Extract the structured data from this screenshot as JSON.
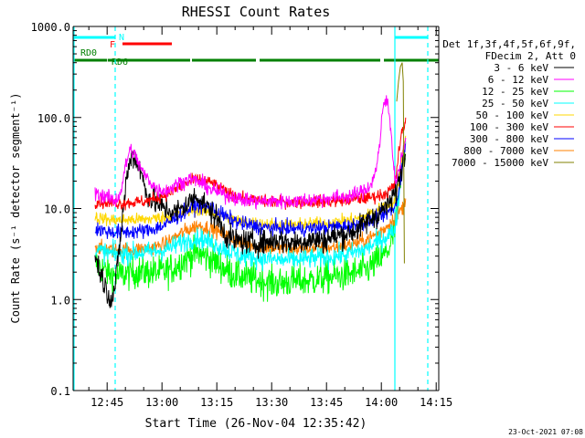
{
  "chart_data": {
    "type": "line",
    "title": "RHESSI Count Rates",
    "xlabel": "Start Time (26-Nov-04 12:35:42)",
    "ylabel": "Count Rate (s⁻¹ detector segment⁻¹)",
    "x_unit": "minutes after 12:35:42 UT",
    "xlim": [
      0,
      100
    ],
    "ylim": [
      0.1,
      1000
    ],
    "y_scale": "log",
    "x_ticks": [
      "12:45",
      "13:00",
      "13:15",
      "13:30",
      "13:45",
      "14:00",
      "14:15"
    ],
    "y_ticks": [
      "0.1",
      "1.0",
      "10.0",
      "100.0",
      "1000.0"
    ],
    "timestamp": "23-Oct-2021 07:08",
    "legend_position": "right",
    "legend_header": [
      "Det 1f,3f,4f,5f,6f,9f,",
      "FDecim 2, Att 0"
    ],
    "grid": false,
    "annotations": {
      "night": "N",
      "flare": "F",
      "decimation": [
        "RD0",
        "RD6"
      ]
    },
    "night_periods": [
      [
        0,
        11.5
      ],
      [
        88,
        97
      ]
    ],
    "flare_flag": [
      [
        13.5,
        27
      ]
    ],
    "decimation_segments": [
      [
        0,
        9.3
      ],
      [
        9.5,
        32
      ],
      [
        32.5,
        50
      ],
      [
        51,
        84
      ],
      [
        85,
        100
      ]
    ],
    "boundaries": [
      {
        "x": 11.5,
        "color": "#00ffff",
        "style": "dashed"
      },
      {
        "x": 88.0,
        "color": "#00ffff",
        "style": "solid"
      },
      {
        "x": 97.0,
        "color": "#00ffff",
        "style": "dashed"
      }
    ],
    "series": [
      {
        "name": "3 - 6 keV",
        "color": "#000000",
        "noise": 0.1,
        "x": [
          6,
          7.5,
          9,
          10.5,
          11.5,
          13,
          14.5,
          16,
          18,
          20,
          22,
          25,
          28,
          31,
          34,
          36,
          38,
          40,
          42,
          44,
          47,
          50,
          53,
          56,
          60,
          64,
          68,
          72,
          76,
          78,
          80,
          82,
          84,
          85,
          86,
          87,
          88,
          89,
          90,
          91
        ],
        "values": [
          3,
          2,
          1.3,
          1.0,
          1.4,
          5,
          20,
          40,
          30,
          15,
          12,
          10,
          9,
          11,
          14,
          11,
          9,
          7,
          5,
          4.5,
          4.3,
          4.2,
          4.3,
          4.5,
          4.2,
          4.5,
          4.5,
          5,
          5.5,
          6,
          7,
          8,
          9,
          10,
          11,
          12,
          15,
          20,
          30,
          42
        ]
      },
      {
        "name": "6 - 12 keV",
        "color": "#ff00ff",
        "noise": 0.06,
        "x": [
          6,
          8,
          10,
          11.5,
          13,
          14,
          15.5,
          17,
          19,
          21,
          23,
          26,
          28,
          30,
          32,
          34,
          36,
          38,
          40,
          42,
          44,
          46,
          50,
          55,
          60,
          65,
          70,
          74,
          77,
          80,
          82,
          83,
          84,
          84.5,
          85,
          86,
          87,
          88,
          89,
          90,
          91
        ],
        "values": [
          15,
          14,
          13,
          12,
          15,
          25,
          45,
          38,
          25,
          20,
          16,
          16,
          18,
          20,
          21,
          20,
          18,
          16,
          15,
          14,
          13.5,
          12.5,
          12,
          12,
          12,
          12.5,
          13,
          13.5,
          14,
          16,
          20,
          30,
          55,
          100,
          145,
          150,
          70,
          20,
          25,
          40,
          60
        ]
      },
      {
        "name": "12 - 25 keV",
        "color": "#00ff00",
        "noise": 0.13,
        "x": [
          6,
          8,
          10,
          12,
          14,
          17,
          20,
          25,
          28,
          30,
          32,
          34,
          36,
          38,
          40,
          42,
          44,
          48,
          52,
          56,
          60,
          64,
          68,
          72,
          76,
          80,
          82,
          84,
          85,
          86,
          87,
          88,
          89,
          90,
          91
        ],
        "values": [
          2.5,
          2.2,
          1.9,
          1.8,
          1.9,
          2.0,
          2.0,
          2.0,
          2.3,
          2.7,
          3.0,
          3.2,
          3.0,
          2.7,
          2.4,
          2.1,
          1.9,
          1.7,
          1.6,
          1.5,
          1.6,
          1.6,
          1.7,
          1.8,
          1.9,
          2.1,
          2.4,
          2.8,
          3,
          3.5,
          4,
          6,
          12,
          30,
          50
        ]
      },
      {
        "name": "25 - 50 keV",
        "color": "#00ffff",
        "noise": 0.08,
        "x": [
          6,
          10,
          14,
          20,
          25,
          30,
          34,
          38,
          42,
          46,
          52,
          58,
          64,
          70,
          76,
          80,
          84,
          86,
          88,
          89,
          90,
          91
        ],
        "values": [
          3.5,
          3.2,
          3.2,
          3.3,
          3.5,
          4.3,
          4.8,
          4.2,
          3.5,
          3.0,
          2.8,
          2.7,
          2.8,
          2.9,
          3.2,
          3.6,
          4.5,
          5,
          6,
          12,
          35,
          60
        ]
      },
      {
        "name": "50 - 100 keV",
        "color": "#ffd700",
        "noise": 0.05,
        "x": [
          6,
          10,
          14,
          20,
          25,
          30,
          34,
          38,
          42,
          46,
          52,
          58,
          64,
          70,
          76,
          80,
          84,
          86,
          88,
          89,
          90,
          91
        ],
        "values": [
          8,
          7.5,
          7.5,
          7.6,
          8,
          9,
          9.8,
          9,
          8,
          7.2,
          6.8,
          6.6,
          6.8,
          7,
          7.5,
          8.2,
          10,
          11,
          12,
          20,
          40,
          60
        ]
      },
      {
        "name": "100 - 300 keV",
        "color": "#ff0000",
        "noise": 0.05,
        "x": [
          6,
          10,
          14,
          20,
          25,
          30,
          34,
          38,
          42,
          46,
          52,
          58,
          64,
          70,
          76,
          80,
          84,
          86,
          88,
          89,
          90,
          91
        ],
        "values": [
          12,
          11.5,
          11.5,
          12,
          14,
          18,
          21,
          19,
          15,
          13,
          12,
          11.8,
          11.8,
          12,
          12.5,
          13,
          14,
          15,
          18,
          40,
          70,
          90
        ]
      },
      {
        "name": "300 - 800 keV",
        "color": "#0000ff",
        "noise": 0.06,
        "x": [
          6,
          10,
          14,
          20,
          25,
          30,
          34,
          38,
          42,
          46,
          52,
          58,
          64,
          70,
          76,
          80,
          84,
          86,
          88,
          89,
          90,
          91
        ],
        "values": [
          6,
          5.5,
          5.5,
          5.7,
          6.5,
          9,
          11,
          10,
          8,
          6.8,
          6.2,
          6.0,
          6.0,
          6.2,
          6.5,
          7,
          8,
          9,
          10,
          15,
          30,
          55
        ]
      },
      {
        "name": "800 - 7000 keV",
        "color": "#ff8000",
        "noise": 0.06,
        "x": [
          6,
          10,
          14,
          20,
          25,
          30,
          34,
          38,
          42,
          46,
          52,
          58,
          64,
          70,
          76,
          80,
          84,
          86,
          88,
          89,
          90,
          90.5,
          91
        ],
        "values": [
          3.8,
          3.5,
          3.5,
          3.6,
          4,
          5.5,
          6.5,
          6,
          5,
          4.2,
          3.8,
          3.6,
          3.6,
          3.7,
          4,
          4.5,
          5.5,
          6.5,
          8,
          9,
          10,
          11,
          13
        ]
      },
      {
        "name": "7000 - 15000 keV",
        "color": "#808000",
        "noise": 0.0,
        "x": [
          88.5,
          89,
          89.5,
          90,
          90.3,
          90.6
        ],
        "values": [
          150,
          250,
          360,
          400,
          250,
          2.5
        ]
      }
    ]
  }
}
